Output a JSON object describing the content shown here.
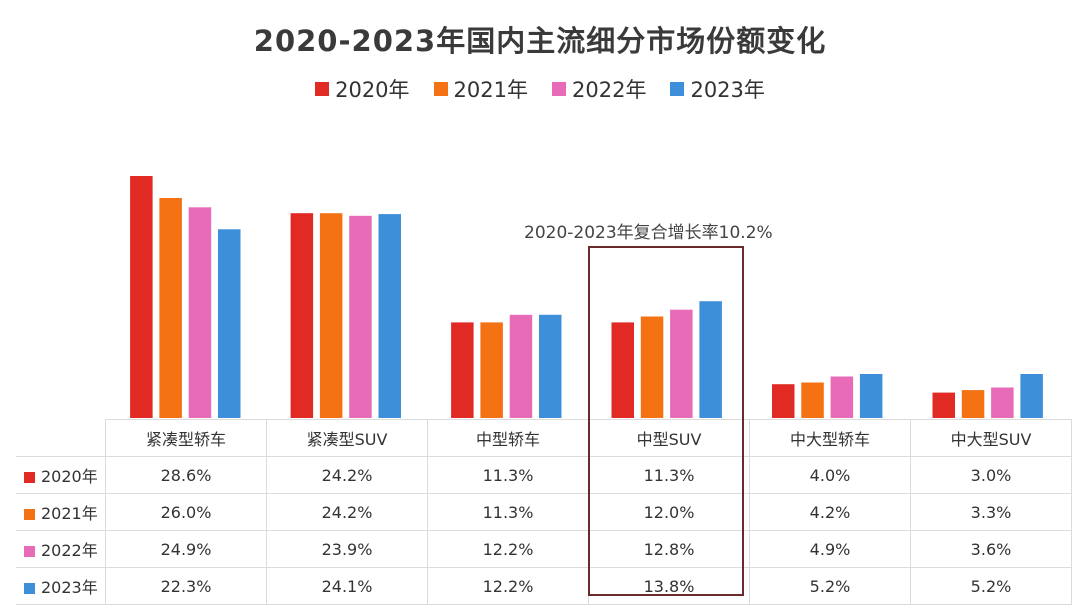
{
  "title": "2020-2023年国内主流细分市场份额变化",
  "annotation": "2020-2023年复合增长率10.2%",
  "colors": {
    "2020年": "#e02a23",
    "2021年": "#f47214",
    "2022年": "#e86bb8",
    "2023年": "#3d8fd9"
  },
  "chart_data": {
    "type": "bar",
    "categories": [
      "紧凑型轿车",
      "紧凑型SUV",
      "中型轿车",
      "中型SUV",
      "中大型轿车",
      "中大型SUV"
    ],
    "series": [
      {
        "name": "2020年",
        "values": [
          28.6,
          24.2,
          11.3,
          11.3,
          4.0,
          3.0
        ],
        "labels": [
          "28.6%",
          "24.2%",
          "11.3%",
          "11.3%",
          "4.0%",
          "3.0%"
        ]
      },
      {
        "name": "2021年",
        "values": [
          26.0,
          24.2,
          11.3,
          12.0,
          4.2,
          3.3
        ],
        "labels": [
          "26.0%",
          "24.2%",
          "11.3%",
          "12.0%",
          "4.2%",
          "3.3%"
        ]
      },
      {
        "name": "2022年",
        "values": [
          24.9,
          23.9,
          12.2,
          12.8,
          4.9,
          3.6
        ],
        "labels": [
          "24.9%",
          "23.9%",
          "12.2%",
          "12.8%",
          "4.9%",
          "3.6%"
        ]
      },
      {
        "name": "2023年",
        "values": [
          22.3,
          24.1,
          12.2,
          13.8,
          5.2,
          5.2
        ],
        "labels": [
          "22.3%",
          "24.1%",
          "12.2%",
          "13.8%",
          "5.2%",
          "5.2%"
        ]
      }
    ],
    "title": "2020-2023年国内主流细分市场份额变化",
    "xlabel": "",
    "ylabel": "",
    "ylim": [
      0,
      30
    ],
    "grid": false,
    "legend": "top-center",
    "highlight_category": "中型SUV"
  }
}
